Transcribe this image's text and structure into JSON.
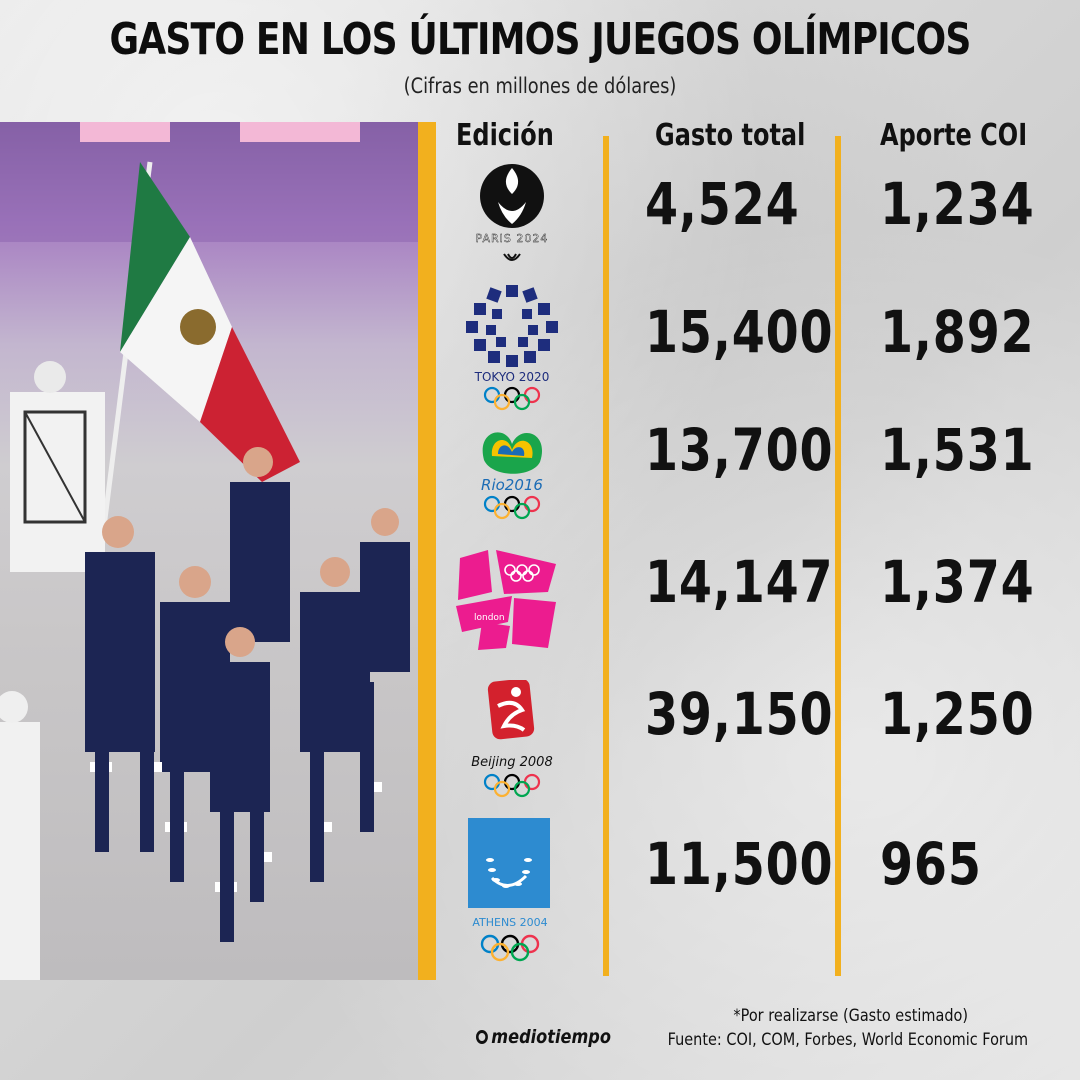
{
  "title": "GASTO EN LOS ÚLTIMOS JUEGOS OLÍMPICOS",
  "subtitle": "(Cifras en millones de dólares)",
  "headers": {
    "edition": "Edición",
    "total": "Gasto total",
    "ioc": "Aporte COI"
  },
  "footnote": "*Por realizarse (Gasto estimado)",
  "source": "Fuente: COI, COM, Forbes, World Economic Forum",
  "brand": "mediotiempo",
  "colors": {
    "accent": "#f2b01e",
    "text": "#111111"
  },
  "chart_data": {
    "type": "table",
    "title": "GASTO EN LOS ÚLTIMOS JUEGOS OLÍMPICOS",
    "subtitle": "(Cifras en millones de dólares)",
    "columns": [
      "Edición",
      "Gasto total",
      "Aporte COI"
    ],
    "rows": [
      {
        "edition": "PARIS 2024",
        "total": "4,524",
        "ioc": "1,234"
      },
      {
        "edition": "TOKYO 2020",
        "total": "15,400",
        "ioc": "1,892"
      },
      {
        "edition": "Rio2016",
        "total": "13,700",
        "ioc": "1,531"
      },
      {
        "edition": "london",
        "total": "14,147",
        "ioc": "1,374"
      },
      {
        "edition": "Beijing 2008",
        "total": "39,150",
        "ioc": "1,250"
      },
      {
        "edition": "ATHENS 2004",
        "total": "11,500",
        "ioc": "965"
      }
    ]
  }
}
